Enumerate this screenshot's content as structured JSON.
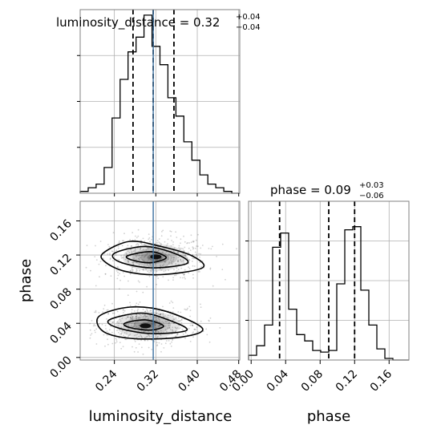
{
  "chart_data": {
    "type": "corner",
    "parameters": [
      "luminosity_distance",
      "phase"
    ],
    "colors": {
      "line": "#000000",
      "truth": "#3a6f9e",
      "grid": "#b0b0b0",
      "frame": "#808080"
    },
    "titles": {
      "luminosity_distance": {
        "prefix": "luminosity_distance = ",
        "value": "0.32",
        "plus": "+0.04",
        "minus": "−0.04"
      },
      "phase": {
        "prefix": "phase = ",
        "value": "0.09",
        "plus": "+0.03",
        "minus": "−0.06"
      }
    },
    "axis_labels": {
      "x_lum": "luminosity_distance",
      "x_phase": "phase",
      "y_phase": "phase"
    },
    "lum_ticks": [
      "0.24",
      "0.32",
      "0.40",
      "0.48"
    ],
    "lum_tick_values": [
      0.24,
      0.32,
      0.4,
      0.48
    ],
    "phase_ticks": [
      "0.00",
      "0.04",
      "0.08",
      "0.12",
      "0.16"
    ],
    "phase_tick_values": [
      0.0,
      0.04,
      0.08,
      0.12,
      0.16
    ],
    "lum_range": [
      0.174,
      0.482
    ],
    "phase_range": [
      -0.003,
      0.183
    ],
    "truth_lum": 0.315,
    "lum_hist": {
      "edges": [
        0.174,
        0.1894,
        0.2048,
        0.2202,
        0.2356,
        0.251,
        0.2664,
        0.2818,
        0.2972,
        0.3126,
        0.328,
        0.3434,
        0.3588,
        0.3742,
        0.3896,
        0.405,
        0.4204,
        0.4358,
        0.4512,
        0.4666,
        0.482
      ],
      "counts": [
        0.01,
        0.03,
        0.05,
        0.14,
        0.41,
        0.62,
        0.77,
        0.85,
        0.97,
        0.8,
        0.7,
        0.52,
        0.42,
        0.28,
        0.18,
        0.1,
        0.05,
        0.03,
        0.01,
        0.0
      ],
      "quantiles": [
        0.276,
        0.315,
        0.355
      ]
    },
    "phase_hist": {
      "edges": [
        -0.003,
        0.0063,
        0.0156,
        0.0249,
        0.0342,
        0.0435,
        0.0528,
        0.0621,
        0.0714,
        0.0807,
        0.09,
        0.0993,
        0.1086,
        0.1179,
        0.1272,
        0.1365,
        0.1458,
        0.1551,
        0.1644,
        0.1737,
        0.183
      ],
      "counts": [
        0.03,
        0.09,
        0.22,
        0.71,
        0.8,
        0.32,
        0.16,
        0.12,
        0.06,
        0.05,
        0.06,
        0.48,
        0.82,
        0.84,
        0.44,
        0.22,
        0.07,
        0.01,
        0.0,
        0.0
      ],
      "quantiles": [
        0.033,
        0.09,
        0.12
      ]
    },
    "contours_2d": {
      "upper_mode": {
        "outer": [
          [
            0.22,
            0.123
          ],
          [
            0.27,
            0.136
          ],
          [
            0.33,
            0.13
          ],
          [
            0.39,
            0.119
          ],
          [
            0.41,
            0.105
          ],
          [
            0.33,
            0.097
          ],
          [
            0.26,
            0.101
          ],
          [
            0.22,
            0.113
          ]
        ],
        "middle": [
          [
            0.24,
            0.122
          ],
          [
            0.3,
            0.13
          ],
          [
            0.36,
            0.121
          ],
          [
            0.38,
            0.11
          ],
          [
            0.31,
            0.105
          ],
          [
            0.25,
            0.112
          ]
        ],
        "inner": [
          [
            0.265,
            0.119
          ],
          [
            0.31,
            0.124
          ],
          [
            0.34,
            0.117
          ],
          [
            0.31,
            0.111
          ],
          [
            0.275,
            0.114
          ]
        ]
      },
      "lower_mode": {
        "outer": [
          [
            0.21,
            0.048
          ],
          [
            0.27,
            0.059
          ],
          [
            0.34,
            0.054
          ],
          [
            0.41,
            0.034
          ],
          [
            0.37,
            0.024
          ],
          [
            0.28,
            0.022
          ],
          [
            0.22,
            0.03
          ]
        ],
        "middle": [
          [
            0.23,
            0.044
          ],
          [
            0.29,
            0.052
          ],
          [
            0.34,
            0.045
          ],
          [
            0.38,
            0.032
          ],
          [
            0.31,
            0.028
          ],
          [
            0.245,
            0.035
          ]
        ],
        "inner": [
          [
            0.26,
            0.04
          ],
          [
            0.3,
            0.044
          ],
          [
            0.335,
            0.037
          ],
          [
            0.31,
            0.032
          ],
          [
            0.27,
            0.035
          ]
        ]
      },
      "densest_points": [
        [
          0.32,
          0.118
        ],
        [
          0.3,
          0.037
        ]
      ]
    }
  }
}
